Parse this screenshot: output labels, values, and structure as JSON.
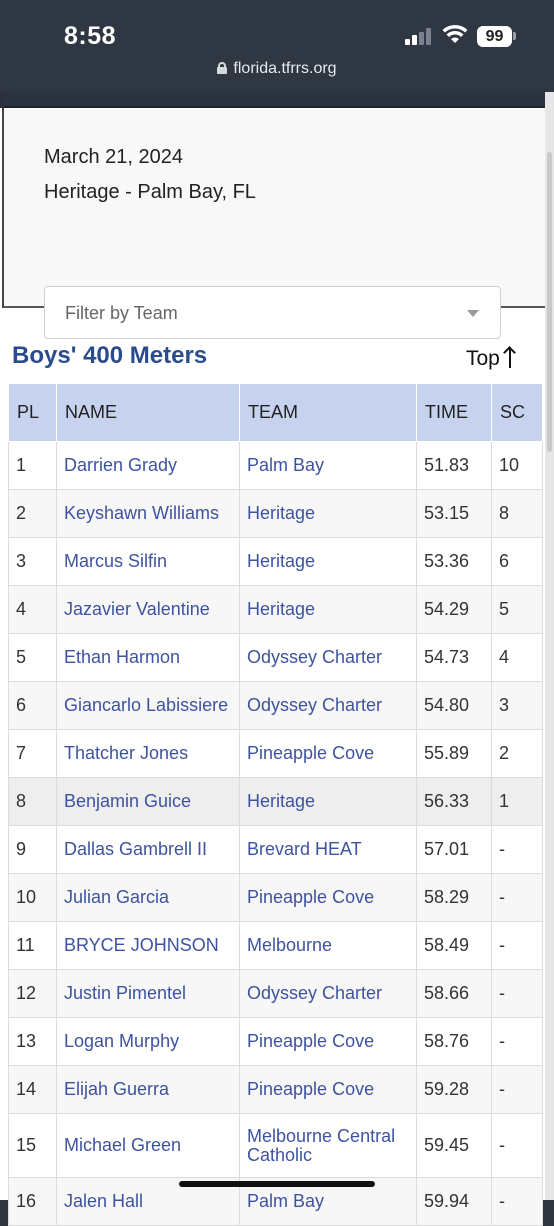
{
  "status_bar": {
    "time": "8:58",
    "battery": "99"
  },
  "browser": {
    "url": "florida.tfrrs.org"
  },
  "meet": {
    "date": "March 21, 2024",
    "location": "Heritage - Palm Bay, FL",
    "filter_placeholder": "Filter by Team"
  },
  "event": {
    "title": "Boys' 400 Meters",
    "top_link": "Top"
  },
  "table": {
    "columns": [
      "PL",
      "NAME",
      "TEAM",
      "TIME",
      "SC"
    ],
    "rows": [
      {
        "pl": "1",
        "name": "Darrien Grady",
        "team": "Palm Bay",
        "time": "51.83",
        "sc": "10"
      },
      {
        "pl": "2",
        "name": "Keyshawn Williams",
        "team": "Heritage",
        "time": "53.15",
        "sc": "8"
      },
      {
        "pl": "3",
        "name": "Marcus Silfin",
        "team": "Heritage",
        "time": "53.36",
        "sc": "6"
      },
      {
        "pl": "4",
        "name": "Jazavier Valentine",
        "team": "Heritage",
        "time": "54.29",
        "sc": "5"
      },
      {
        "pl": "5",
        "name": "Ethan Harmon",
        "team": "Odyssey Charter",
        "time": "54.73",
        "sc": "4"
      },
      {
        "pl": "6",
        "name": "Giancarlo Labissiere",
        "team": "Odyssey Charter",
        "time": "54.80",
        "sc": "3"
      },
      {
        "pl": "7",
        "name": "Thatcher Jones",
        "team": "Pineapple Cove",
        "time": "55.89",
        "sc": "2"
      },
      {
        "pl": "8",
        "name": "Benjamin Guice",
        "team": "Heritage",
        "time": "56.33",
        "sc": "1"
      },
      {
        "pl": "9",
        "name": "Dallas Gambrell II",
        "team": "Brevard HEAT",
        "time": "57.01",
        "sc": "-"
      },
      {
        "pl": "10",
        "name": "Julian Garcia",
        "team": "Pineapple Cove",
        "time": "58.29",
        "sc": "-"
      },
      {
        "pl": "11",
        "name": "BRYCE JOHNSON",
        "team": "Melbourne",
        "time": "58.49",
        "sc": "-"
      },
      {
        "pl": "12",
        "name": "Justin Pimentel",
        "team": "Odyssey Charter",
        "time": "58.66",
        "sc": "-"
      },
      {
        "pl": "13",
        "name": "Logan Murphy",
        "team": "Pineapple Cove",
        "time": "58.76",
        "sc": "-"
      },
      {
        "pl": "14",
        "name": "Elijah Guerra",
        "team": "Pineapple Cove",
        "time": "59.28",
        "sc": "-"
      },
      {
        "pl": "15",
        "name": "Michael Green",
        "team": "Melbourne Central Catholic",
        "time": "59.45",
        "sc": "-"
      },
      {
        "pl": "16",
        "name": "Jalen Hall",
        "team": "Palm Bay",
        "time": "59.94",
        "sc": "-"
      }
    ]
  }
}
